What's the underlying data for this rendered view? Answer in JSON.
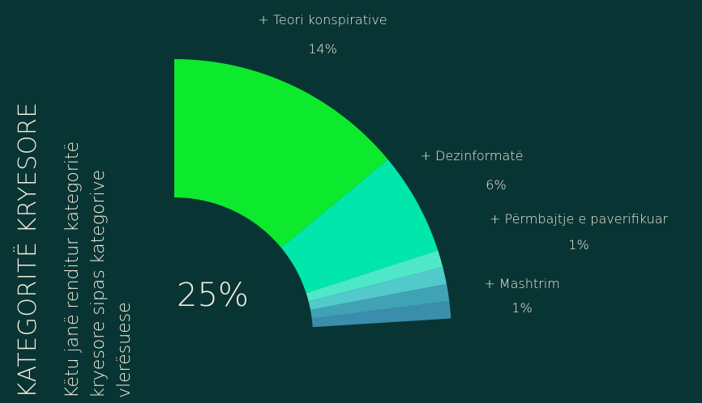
{
  "chart_data": {
    "type": "pie",
    "title": "KATEGORITË KRYESORE",
    "subtitle": [
      "Këtu janë renditur kategoritë",
      "kryesore sipas kategorive",
      "vlerësuese"
    ],
    "total_label": "25%",
    "categories": [
      "+ Teori konspirative",
      "+ Dezinformatë",
      "+ Përmbajtje e paverifikuar",
      "+ Mashtrim",
      null,
      null
    ],
    "values": [
      14,
      6,
      1,
      1,
      1,
      1
    ],
    "value_labels": [
      "14%",
      "6%",
      "1%",
      "1%",
      null,
      null
    ],
    "colors": [
      "#0de92c",
      "#00e6ab",
      "#4ee8c9",
      "#52c9cb",
      "#3fa3b5",
      "#3a8dab"
    ]
  }
}
